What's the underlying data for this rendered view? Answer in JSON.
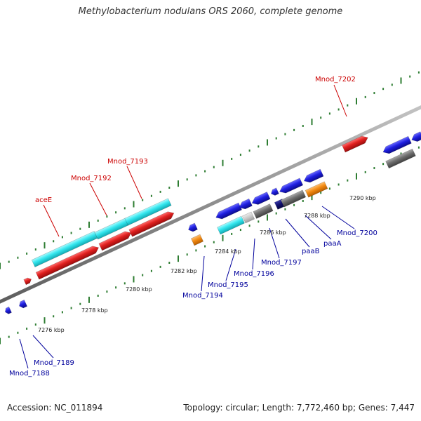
{
  "title": "Methylobacterium nodulans ORS 2060, complete genome",
  "footer": {
    "accession": "Accession: NC_011894",
    "topology": "Topology: circular; Length: 7,772,460 bp; Genes: 7,447"
  },
  "colors": {
    "backbone": "#8e8e8e",
    "tick": "#2e7d32",
    "red": "#e0201f",
    "cyan": "#33e6ee",
    "blue": "#1f1fe0",
    "gray": "#707070",
    "orange": "#f28a12",
    "navy": "#10106e",
    "lightgray": "#c8c8c8",
    "label_red": "#cc0000",
    "label_blue": "#00009c"
  },
  "kbp_labels": [
    "7276 kbp",
    "7278 kbp",
    "7280 kbp",
    "7282 kbp",
    "7284 kbp",
    "7286 kbp",
    "7288 kbp",
    "7290 kbp"
  ],
  "genes": {
    "aceE": "aceE",
    "Mnod_7192": "Mnod_7192",
    "Mnod_7193": "Mnod_7193",
    "Mnod_7202": "Mnod_7202",
    "Mnod_7188": "Mnod_7188",
    "Mnod_7189": "Mnod_7189",
    "Mnod_7194": "Mnod_7194",
    "Mnod_7195": "Mnod_7195",
    "Mnod_7196": "Mnod_7196",
    "Mnod_7197": "Mnod_7197",
    "paaB": "paaB",
    "paaA": "paaA",
    "Mnod_7200": "Mnod_7200"
  }
}
